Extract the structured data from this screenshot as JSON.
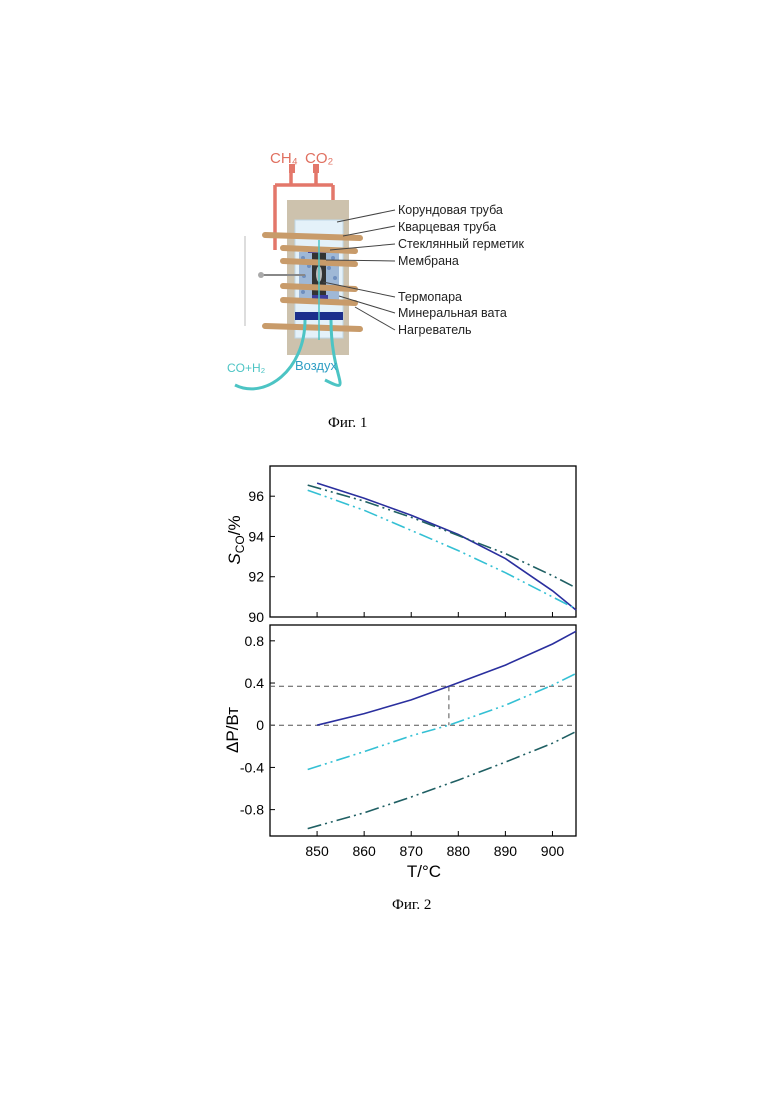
{
  "figure1": {
    "top_labels": {
      "ch4": "CH₄",
      "co2": "CO₂"
    },
    "parts": [
      "Корундовая труба",
      "Кварцевая труба",
      "Стеклянный герметик",
      "Мембрана",
      "Термопара",
      "Минеральная вата",
      "Нагреватель"
    ],
    "bottom_labels": {
      "co_h2": "CO+H₂",
      "air": "Воздух"
    },
    "caption": "Фиг. 1"
  },
  "figure2": {
    "caption": "Фиг. 2",
    "colors": {
      "solid": "#2a2f9e",
      "dashdot_light": "#34c0d4",
      "dashdot_dark": "#1f5f63"
    }
  },
  "chart_data": [
    {
      "type": "line",
      "ylabel": "SCO/%",
      "ylabel_main": "S",
      "ylabel_sub": "CO",
      "ylabel_unit": "/%",
      "xlim": [
        840,
        905
      ],
      "ylim": [
        90,
        97.5
      ],
      "yticks": [
        90,
        92,
        94,
        96
      ],
      "series": [
        {
          "style": "solid",
          "x": [
            850,
            860,
            870,
            880,
            890,
            900,
            905
          ],
          "y": [
            96.65,
            95.9,
            95.05,
            94.1,
            92.9,
            91.3,
            90.35
          ]
        },
        {
          "style": "dashdot_light",
          "x": [
            848,
            860,
            870,
            880,
            890,
            900,
            905
          ],
          "y": [
            96.3,
            95.3,
            94.3,
            93.3,
            92.2,
            91.0,
            90.4
          ]
        },
        {
          "style": "dashdot_dark",
          "x": [
            848,
            860,
            870,
            880,
            890,
            900,
            905
          ],
          "y": [
            96.55,
            95.75,
            94.95,
            94.05,
            93.15,
            92.05,
            91.45
          ]
        }
      ]
    },
    {
      "type": "line",
      "xlabel": "T/°C",
      "ylabel": "ΔP/Вт",
      "xlim": [
        840,
        905
      ],
      "ylim": [
        -1.05,
        0.95
      ],
      "xticks": [
        850,
        860,
        870,
        880,
        890,
        900
      ],
      "yticks": [
        -0.8,
        -0.4,
        0,
        0.4,
        0.8
      ],
      "series": [
        {
          "style": "solid",
          "x": [
            850,
            860,
            870,
            878,
            890,
            900,
            905
          ],
          "y": [
            0.0,
            0.11,
            0.24,
            0.37,
            0.57,
            0.77,
            0.89
          ]
        },
        {
          "style": "dashdot_light",
          "x": [
            848,
            860,
            870,
            878,
            890,
            900,
            905
          ],
          "y": [
            -0.42,
            -0.25,
            -0.1,
            0.0,
            0.19,
            0.38,
            0.49
          ]
        },
        {
          "style": "dashdot_dark",
          "x": [
            848,
            860,
            870,
            880,
            890,
            900,
            905
          ],
          "y": [
            -0.98,
            -0.83,
            -0.68,
            -0.52,
            -0.35,
            -0.17,
            -0.06
          ]
        }
      ],
      "reference": {
        "x": 878,
        "y": 0.37
      }
    }
  ]
}
